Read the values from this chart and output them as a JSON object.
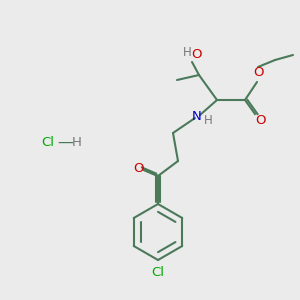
{
  "bg_color": "#ebebeb",
  "bond_color": "#4a7a5a",
  "figsize": [
    3.0,
    3.0
  ],
  "dpi": 100,
  "atom_colors": {
    "C": "#4a7a5a",
    "O": "#cc0000",
    "N": "#0000cc",
    "Cl": "#00aa00",
    "H": "#777777"
  }
}
